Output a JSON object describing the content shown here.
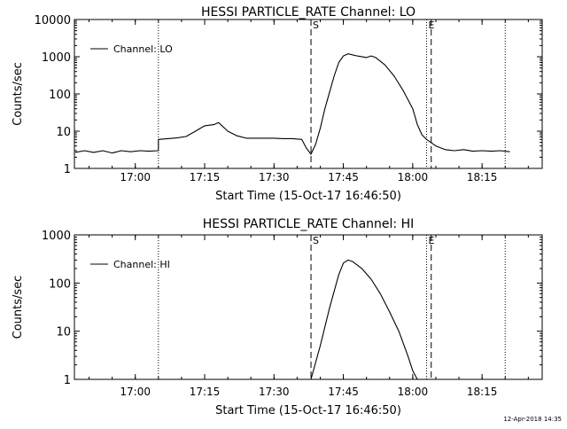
{
  "footer": {
    "timestamp": "12-Apr-2018 14:35"
  },
  "chart_data": [
    {
      "type": "line",
      "title": "HESSI PARTICLE_RATE Channel: LO",
      "xlabel": "Start Time (15-Oct-17 16:46:50)",
      "ylabel": "Counts/sec",
      "yscale": "log",
      "xlim": [
        "16:46:50",
        "18:28:00"
      ],
      "ylim": [
        1,
        10000
      ],
      "xticks": [
        "17:00",
        "17:15",
        "17:30",
        "17:45",
        "18:00",
        "18:15"
      ],
      "yticks": [
        "1",
        "10",
        "100",
        "1000",
        "10000"
      ],
      "legend": {
        "position": "top-left",
        "entries": [
          "Channel: LO"
        ]
      },
      "markers": [
        {
          "label": "",
          "time": "17:05",
          "style": "dotted"
        },
        {
          "label": "S",
          "time": "17:38",
          "style": "dashed"
        },
        {
          "label": "E",
          "time": "18:03",
          "style": "dotted"
        },
        {
          "label": "",
          "time": "18:04",
          "style": "dashed"
        },
        {
          "label": "",
          "time": "18:20",
          "style": "dotted"
        }
      ],
      "series": [
        {
          "name": "Channel: LO",
          "points": [
            [
              "16:47",
              2.7
            ],
            [
              "16:49",
              3.0
            ],
            [
              "16:51",
              2.7
            ],
            [
              "16:53",
              3.0
            ],
            [
              "16:55",
              2.6
            ],
            [
              "16:57",
              3.0
            ],
            [
              "16:59",
              2.8
            ],
            [
              "17:01",
              3.0
            ],
            [
              "17:03",
              2.9
            ],
            [
              "17:05",
              3.0
            ],
            [
              "17:05",
              6.0
            ],
            [
              "17:07",
              6.3
            ],
            [
              "17:09",
              6.6
            ],
            [
              "17:11",
              7.2
            ],
            [
              "17:13",
              10
            ],
            [
              "17:15",
              14
            ],
            [
              "17:17",
              15
            ],
            [
              "17:18",
              17
            ],
            [
              "17:20",
              10
            ],
            [
              "17:22",
              7.5
            ],
            [
              "17:24",
              6.5
            ],
            [
              "17:26",
              6.5
            ],
            [
              "17:28",
              6.5
            ],
            [
              "17:30",
              6.5
            ],
            [
              "17:32",
              6.3
            ],
            [
              "17:34",
              6.3
            ],
            [
              "17:36",
              6.0
            ],
            [
              "17:37",
              3.5
            ],
            [
              "17:38",
              2.4
            ],
            [
              "17:39",
              4.5
            ],
            [
              "17:40",
              12
            ],
            [
              "17:41",
              40
            ],
            [
              "17:42",
              110
            ],
            [
              "17:43",
              300
            ],
            [
              "17:44",
              700
            ],
            [
              "17:45",
              1050
            ],
            [
              "17:46",
              1200
            ],
            [
              "17:48",
              1050
            ],
            [
              "17:50",
              950
            ],
            [
              "17:51",
              1050
            ],
            [
              "17:52",
              950
            ],
            [
              "17:54",
              600
            ],
            [
              "17:56",
              300
            ],
            [
              "17:58",
              120
            ],
            [
              "18:00",
              40
            ],
            [
              "18:01",
              15
            ],
            [
              "18:02",
              8
            ],
            [
              "18:03",
              6
            ],
            [
              "18:05",
              4
            ],
            [
              "18:07",
              3.2
            ],
            [
              "18:09",
              3.0
            ],
            [
              "18:11",
              3.2
            ],
            [
              "18:13",
              2.9
            ],
            [
              "18:15",
              3.0
            ],
            [
              "18:17",
              2.9
            ],
            [
              "18:19",
              3.0
            ],
            [
              "18:21",
              2.8
            ]
          ]
        }
      ]
    },
    {
      "type": "line",
      "title": "HESSI PARTICLE_RATE Channel: HI",
      "xlabel": "Start Time (15-Oct-17 16:46:50)",
      "ylabel": "Counts/sec",
      "yscale": "log",
      "xlim": [
        "16:46:50",
        "18:28:00"
      ],
      "ylim": [
        1,
        1000
      ],
      "xticks": [
        "17:00",
        "17:15",
        "17:30",
        "17:45",
        "18:00",
        "18:15"
      ],
      "yticks": [
        "1",
        "10",
        "100",
        "1000"
      ],
      "legend": {
        "position": "top-left",
        "entries": [
          "Channel: HI"
        ]
      },
      "markers": [
        {
          "label": "",
          "time": "17:05",
          "style": "dotted"
        },
        {
          "label": "S",
          "time": "17:38",
          "style": "dashed"
        },
        {
          "label": "E",
          "time": "18:03",
          "style": "dotted"
        },
        {
          "label": "",
          "time": "18:04",
          "style": "dashed"
        },
        {
          "label": "",
          "time": "18:20",
          "style": "dotted"
        }
      ],
      "series": [
        {
          "name": "Channel: HI",
          "points": [
            [
              "17:38",
              1.0
            ],
            [
              "17:40",
              5
            ],
            [
              "17:42",
              30
            ],
            [
              "17:44",
              150
            ],
            [
              "17:45",
              260
            ],
            [
              "17:46",
              300
            ],
            [
              "17:47",
              280
            ],
            [
              "17:49",
              200
            ],
            [
              "17:51",
              120
            ],
            [
              "17:53",
              60
            ],
            [
              "17:55",
              25
            ],
            [
              "17:57",
              10
            ],
            [
              "17:59",
              3
            ],
            [
              "18:00",
              1.5
            ],
            [
              "18:01",
              1.0
            ]
          ]
        }
      ]
    }
  ]
}
